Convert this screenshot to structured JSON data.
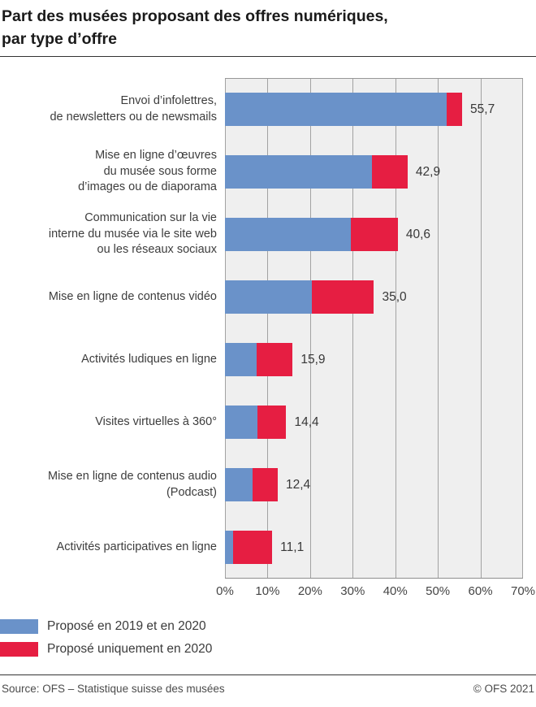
{
  "title": {
    "line1": "Part des musées proposant des offres numériques,",
    "line2": "par type d’offre"
  },
  "chart_data": {
    "type": "bar",
    "orientation": "horizontal",
    "stacked": true,
    "title": "Part des musées proposant des offres numériques, par type d’offre",
    "categories": [
      "Envoi d’infolettres, de newsletters ou de newsmails",
      "Mise en ligne d’œuvres du musée sous forme d’images ou de diaporama",
      "Communication sur la vie interne du musée via le site web ou les réseaux sociaux",
      "Mise en ligne de contenus vidéo",
      "Activités ludiques en ligne",
      "Visites virtuelles à 360°",
      "Mise en ligne de contenus audio (Podcast)",
      "Activités participatives en ligne"
    ],
    "category_lines": [
      [
        "Envoi d’infolettres,",
        "de newsletters ou de newsmails"
      ],
      [
        "Mise en ligne d’œuvres",
        "du musée sous forme",
        "d’images ou de diaporama"
      ],
      [
        "Communication sur la vie",
        "interne du musée via le site web",
        "ou les réseaux sociaux"
      ],
      [
        "Mise en ligne de contenus vidéo"
      ],
      [
        "Activités ludiques en ligne"
      ],
      [
        "Visites virtuelles à 360°"
      ],
      [
        "Mise en ligne de contenus audio",
        "(Podcast)"
      ],
      [
        "Activités participatives en ligne"
      ]
    ],
    "series": [
      {
        "name": "Proposé en 2019 et en 2020",
        "color": "#6A92C9",
        "values": [
          52.0,
          34.5,
          29.6,
          20.4,
          7.5,
          7.6,
          6.5,
          1.9
        ]
      },
      {
        "name": "Proposé uniquement en 2020",
        "color": "#E61E42",
        "values": [
          3.7,
          8.4,
          11.0,
          14.6,
          8.4,
          6.8,
          5.9,
          9.2
        ]
      }
    ],
    "totals": [
      55.7,
      42.9,
      40.6,
      35.0,
      15.9,
      14.4,
      12.4,
      11.1
    ],
    "total_labels": [
      "55,7",
      "42,9",
      "40,6",
      "35,0",
      "15,9",
      "14,4",
      "12,4",
      "11,1"
    ],
    "xlim": [
      0,
      70
    ],
    "x_ticks": [
      "0%",
      "10%",
      "20%",
      "30%",
      "40%",
      "50%",
      "60%",
      "70%"
    ],
    "grid": true,
    "legend_position": "bottom-left",
    "value_label_position": "right-of-bar"
  },
  "legend": {
    "items": [
      {
        "label": "Proposé en 2019 et en 2020",
        "color": "#6A92C9"
      },
      {
        "label": "Proposé uniquement en 2020",
        "color": "#E61E42"
      }
    ]
  },
  "footer": {
    "source": "Source: OFS – Statistique suisse des musées",
    "copyright": "© OFS 2021"
  },
  "colors": {
    "bar_blue": "#6A92C9",
    "bar_red": "#E61E42",
    "plot_background": "#EFEFEF",
    "gridline": "#A2A2A2"
  }
}
